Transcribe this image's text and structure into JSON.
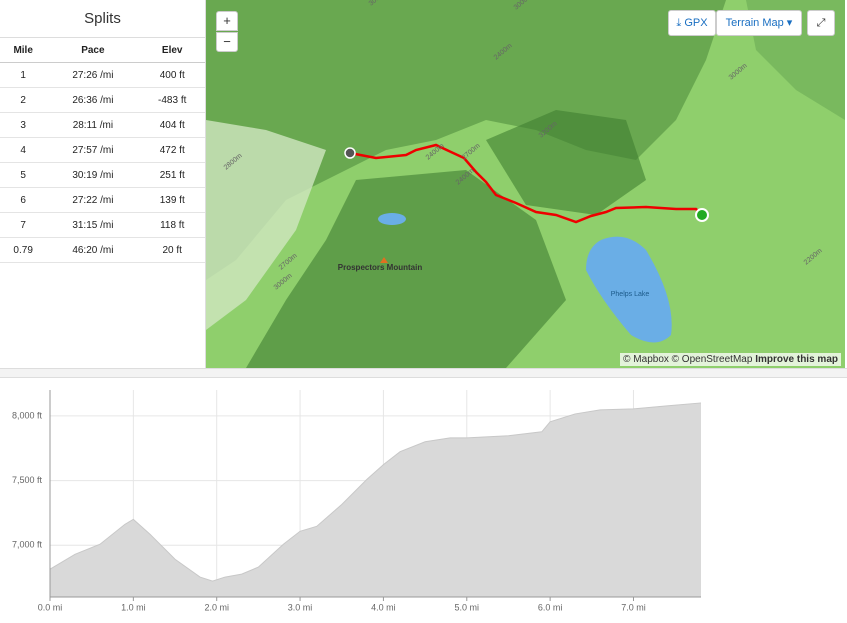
{
  "splits": {
    "title": "Splits",
    "columns": [
      "Mile",
      "Pace",
      "Elev"
    ],
    "rows": [
      [
        "1",
        "27:26 /mi",
        "400 ft"
      ],
      [
        "2",
        "26:36 /mi",
        "-483 ft"
      ],
      [
        "3",
        "28:11 /mi",
        "404 ft"
      ],
      [
        "4",
        "27:57 /mi",
        "472 ft"
      ],
      [
        "5",
        "30:19 /mi",
        "251 ft"
      ],
      [
        "6",
        "27:22 /mi",
        "139 ft"
      ],
      [
        "7",
        "31:15 /mi",
        "118 ft"
      ],
      [
        "0.79",
        "46:20 /mi",
        "20 ft"
      ]
    ]
  },
  "map": {
    "zoom_in": "+",
    "zoom_out": "−",
    "gpx": "GPX",
    "layer": "Terrain Map",
    "attribution": "© Mapbox © OpenStreetMap",
    "improve": "Improve this map",
    "labels": {
      "mountain": "Prospectors Mountain",
      "lake": "Phelps Lake",
      "contours": [
        "3000m",
        "3000m",
        "2400m",
        "2700m",
        "2400m",
        "2400m",
        "2800m",
        "2700m",
        "3000m",
        "3200m",
        "3000m",
        "2200m"
      ]
    }
  },
  "chart_data": {
    "type": "area",
    "x": [
      0,
      0.3,
      0.6,
      0.9,
      1.0,
      1.2,
      1.5,
      1.8,
      1.95,
      2.1,
      2.3,
      2.5,
      2.8,
      3.0,
      3.2,
      3.5,
      3.8,
      4.0,
      4.2,
      4.5,
      4.8,
      5.0,
      5.5,
      5.9,
      6.0,
      6.3,
      6.6,
      7.0,
      7.4,
      7.81
    ],
    "values": [
      6815,
      6930,
      7008,
      7162,
      7200,
      7085,
      6892,
      6754,
      6723,
      6754,
      6777,
      6831,
      7008,
      7108,
      7146,
      7315,
      7508,
      7623,
      7723,
      7800,
      7830,
      7830,
      7846,
      7877,
      7954,
      8015,
      8046,
      8054,
      8077,
      8100
    ],
    "color": "#d9d9d9",
    "xlim": [
      0,
      7.81
    ],
    "ylim": [
      6600,
      8200
    ],
    "xticks": [
      {
        "value": 0,
        "label": "0.0 mi"
      },
      {
        "value": 1,
        "label": "1.0 mi"
      },
      {
        "value": 2,
        "label": "2.0 mi"
      },
      {
        "value": 3,
        "label": "3.0 mi"
      },
      {
        "value": 4,
        "label": "4.0 mi"
      },
      {
        "value": 5,
        "label": "5.0 mi"
      },
      {
        "value": 6,
        "label": "6.0 mi"
      },
      {
        "value": 7,
        "label": "7.0 mi"
      }
    ],
    "yticks": [
      {
        "value": 7000,
        "label": "7,000 ft"
      },
      {
        "value": 7500,
        "label": "7,500 ft"
      },
      {
        "value": 8000,
        "label": "8,000 ft"
      }
    ],
    "grid": true
  }
}
